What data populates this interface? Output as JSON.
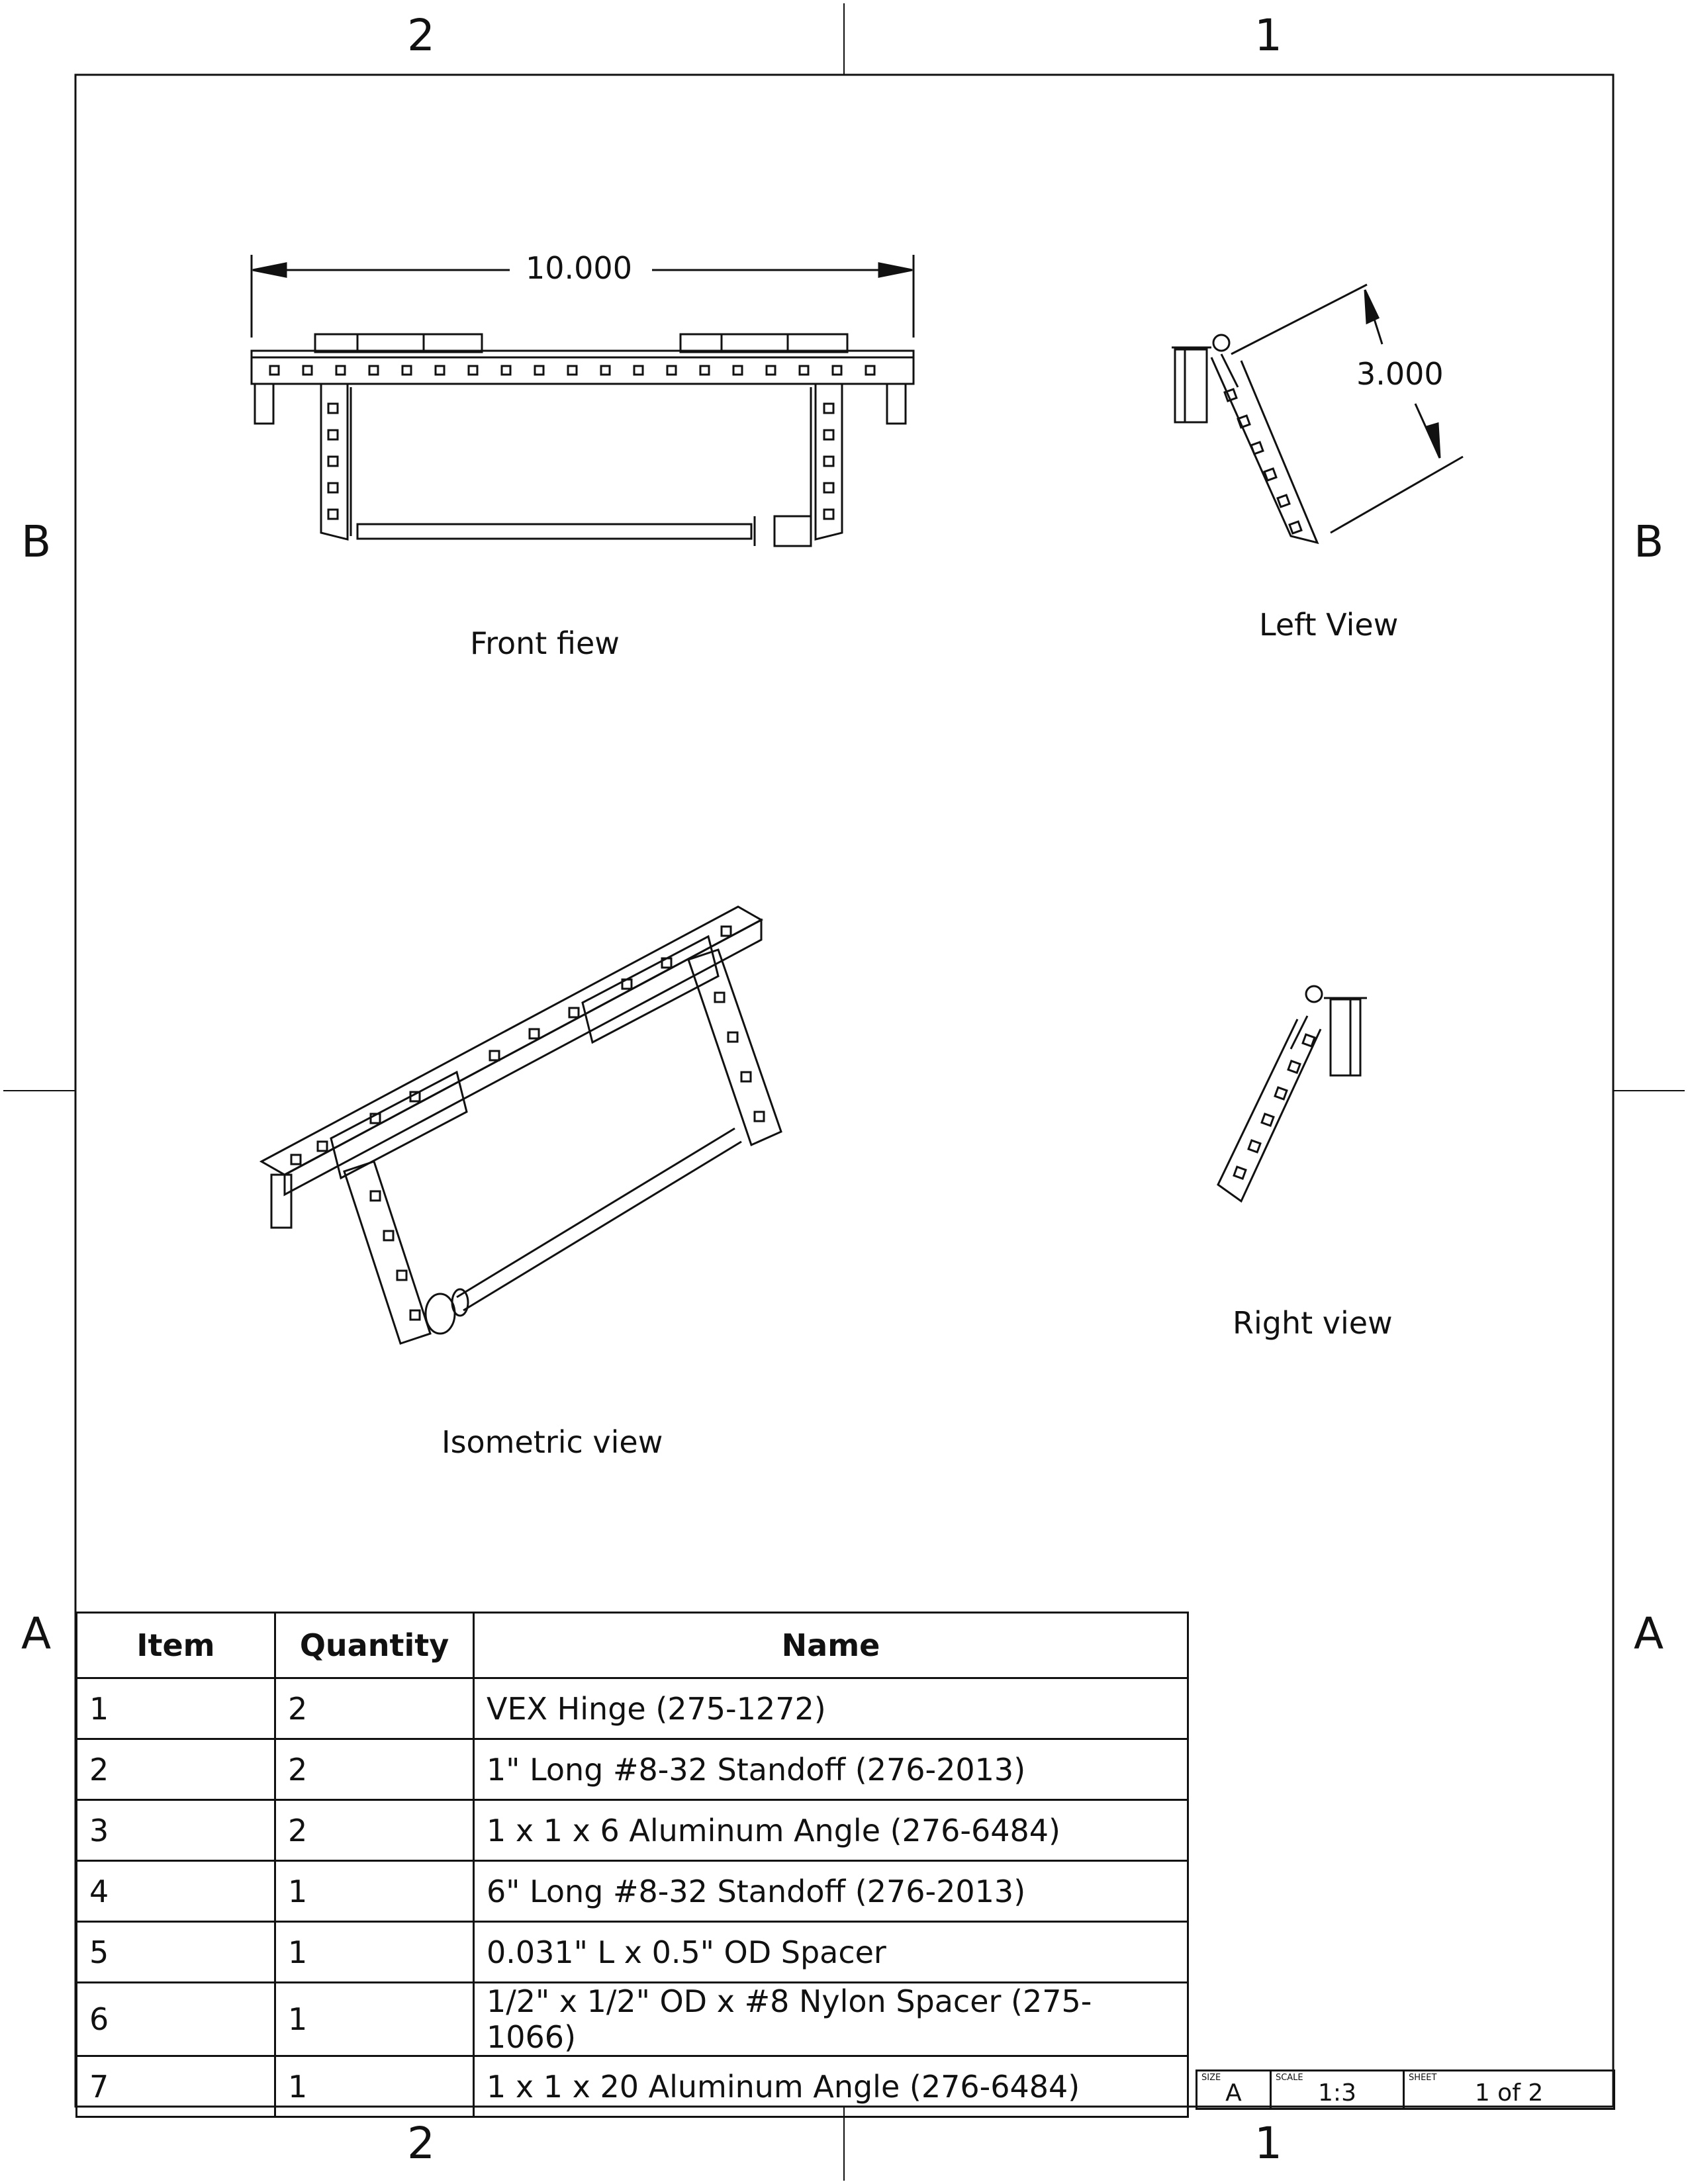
{
  "zones": {
    "top": [
      "2",
      "1"
    ],
    "bottom": [
      "2",
      "1"
    ],
    "left": [
      "B",
      "A"
    ],
    "right": [
      "B",
      "A"
    ]
  },
  "views": {
    "front": {
      "label": "Front fiew",
      "dimension": "10.000"
    },
    "left": {
      "label": "Left View",
      "dimension": "3.000"
    },
    "right": {
      "label": "Right view"
    },
    "isometric": {
      "label": "Isometric view"
    }
  },
  "bom": {
    "headers": [
      "Item",
      "Quantity",
      "Name"
    ],
    "rows": [
      [
        "1",
        "2",
        "VEX Hinge (275-1272)"
      ],
      [
        "2",
        "2",
        "1\" Long #8-32 Standoff (276-2013)"
      ],
      [
        "3",
        "2",
        "1 x 1 x 6 Aluminum Angle (276-6484)"
      ],
      [
        "4",
        "1",
        "6\" Long #8-32 Standoff (276-2013)"
      ],
      [
        "5",
        "1",
        "0.031\" L x 0.5\" OD Spacer"
      ],
      [
        "6",
        "1",
        "1/2\" x 1/2\" OD x #8 Nylon Spacer (275-1066)"
      ],
      [
        "7",
        "1",
        "1 x 1 x 20 Aluminum Angle (276-6484)"
      ]
    ]
  },
  "title_block": {
    "size_caption": "SIZE",
    "size": "A",
    "scale_caption": "SCALE",
    "scale": "1:3",
    "sheet_caption": "SHEET",
    "sheet": "1 of 2"
  }
}
